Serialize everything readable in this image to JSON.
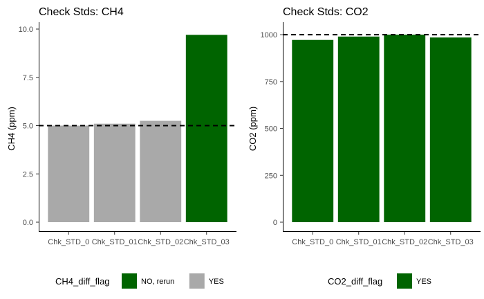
{
  "chart_data": [
    {
      "type": "bar",
      "title": "Check Stds: CH4",
      "xlabel": "",
      "ylabel": "CH4  (ppm)",
      "categories": [
        "Chk_STD_0",
        "Chk_STD_01",
        "Chk_STD_02",
        "Chk_STD_03"
      ],
      "values": [
        5.0,
        5.1,
        5.25,
        9.7
      ],
      "fill_group": [
        "YES",
        "YES",
        "YES",
        "NO, rerun"
      ],
      "reference_line": 5.0,
      "ylim": [
        0,
        10
      ],
      "yticks": [
        0.0,
        2.5,
        5.0,
        7.5,
        10.0
      ],
      "ytick_labels": [
        "0.0",
        "2.5",
        "5.0",
        "7.5",
        "10.0"
      ],
      "grid": false,
      "legend_position": "bottom",
      "legend": {
        "title": "CH4_diff_flag",
        "items": [
          {
            "label": "NO, rerun",
            "color": "#006400"
          },
          {
            "label": "YES",
            "color": "#a9a9a9"
          }
        ]
      }
    },
    {
      "type": "bar",
      "title": "Check Stds: CO2",
      "xlabel": "",
      "ylabel": "CO2  (ppm)",
      "categories": [
        "Chk_STD_0",
        "Chk_STD_01",
        "Chk_STD_02",
        "Chk_STD_03"
      ],
      "values": [
        972,
        990,
        1000,
        985
      ],
      "fill_group": [
        "YES",
        "YES",
        "YES",
        "YES"
      ],
      "reference_line": 1000,
      "ylim": [
        0,
        1030
      ],
      "yticks": [
        0,
        250,
        500,
        750,
        1000
      ],
      "ytick_labels": [
        "0",
        "250",
        "500",
        "750",
        "1000"
      ],
      "grid": false,
      "legend_position": "bottom",
      "legend": {
        "title": "CO2_diff_flag",
        "items": [
          {
            "label": "YES",
            "color": "#006400"
          }
        ]
      }
    }
  ]
}
